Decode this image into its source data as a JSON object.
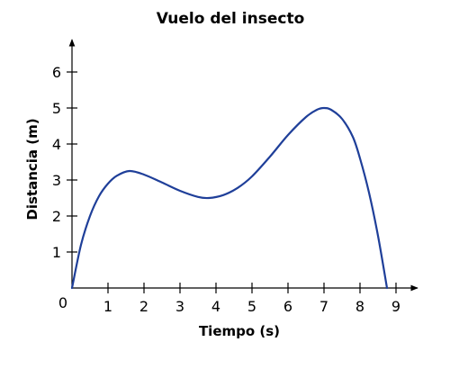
{
  "chart_data": {
    "type": "line",
    "title": "Vuelo del insecto",
    "xlabel": "Tiempo (s)",
    "ylabel": "Distancia (m)",
    "origin_label": "0",
    "xlim": [
      0,
      9.6
    ],
    "ylim": [
      0,
      6.9
    ],
    "x_ticks": [
      1,
      2,
      3,
      4,
      5,
      6,
      7,
      8,
      9
    ],
    "y_ticks": [
      1,
      2,
      3,
      4,
      5,
      6
    ],
    "grid": false,
    "legend": "none",
    "colors": {
      "line": "#1f3f99",
      "axes": "#000000"
    },
    "series": [
      {
        "x": [
          0,
          0.25,
          0.5,
          0.75,
          1,
          1.25,
          1.6,
          2,
          2.5,
          3,
          3.5,
          3.8,
          4.2,
          4.6,
          5,
          5.5,
          6,
          6.5,
          6.8,
          7,
          7.2,
          7.5,
          7.8,
          8,
          8.25,
          8.5,
          8.75
        ],
        "y": [
          0,
          1.2,
          2.0,
          2.55,
          2.9,
          3.12,
          3.25,
          3.15,
          2.93,
          2.7,
          2.53,
          2.5,
          2.58,
          2.78,
          3.1,
          3.65,
          4.25,
          4.75,
          4.95,
          5.0,
          4.95,
          4.7,
          4.2,
          3.6,
          2.65,
          1.45,
          0
        ]
      }
    ]
  }
}
